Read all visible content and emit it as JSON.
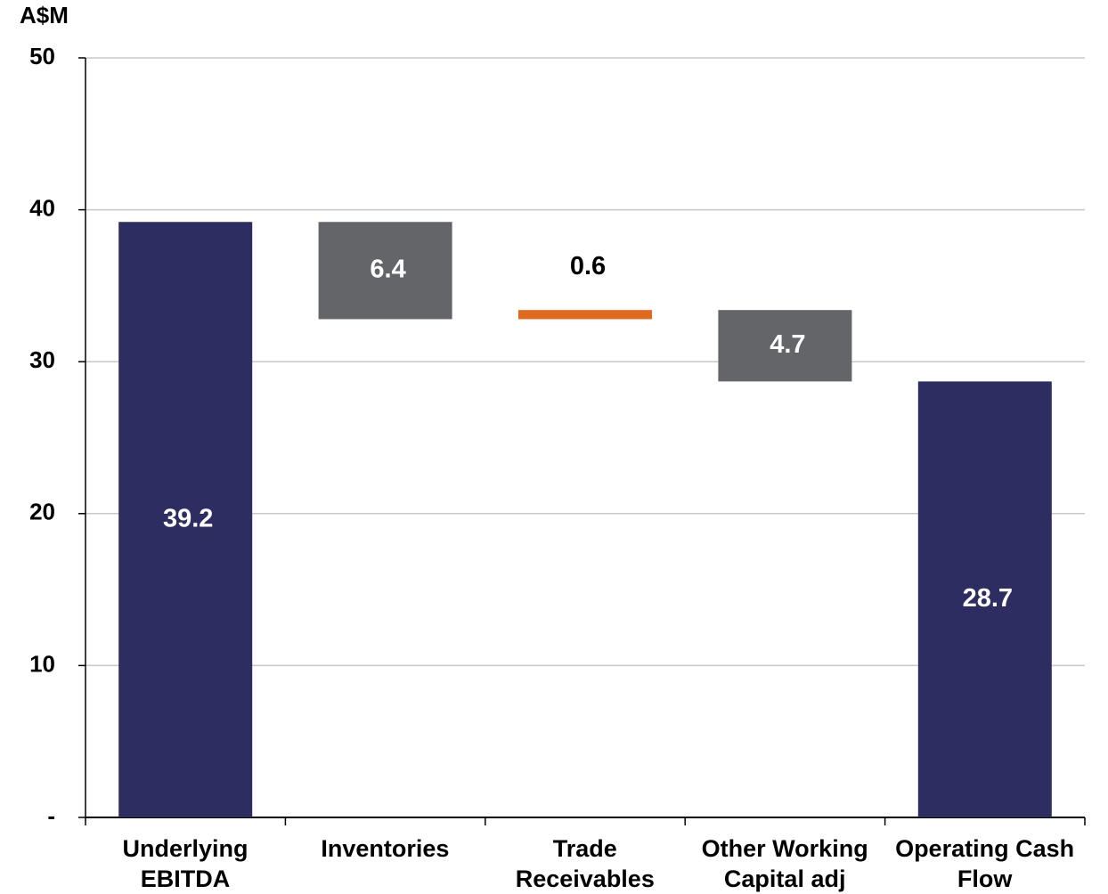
{
  "chart_data": {
    "type": "waterfall",
    "ylabel": "A$M",
    "categories": [
      "Underlying\nEBITDA",
      "Inventories",
      "Trade\nReceivables",
      "Other Working\nCapital adj",
      "Operating Cash\nFlow"
    ],
    "values": [
      39.2,
      -6.4,
      0.6,
      -4.7,
      28.7
    ],
    "value_labels": [
      "39.2",
      "6.4",
      "0.6",
      "4.7",
      "28.7"
    ],
    "measures": [
      "total",
      "relative",
      "relative",
      "relative",
      "total"
    ],
    "colors": [
      "#2e2d62",
      "#636569",
      "#e0691f",
      "#636569",
      "#2e2d62"
    ],
    "ylim": [
      0,
      50
    ],
    "yticks": [
      {
        "value": 0,
        "label": "-"
      },
      10,
      20,
      30,
      40,
      50
    ],
    "grid": true
  }
}
